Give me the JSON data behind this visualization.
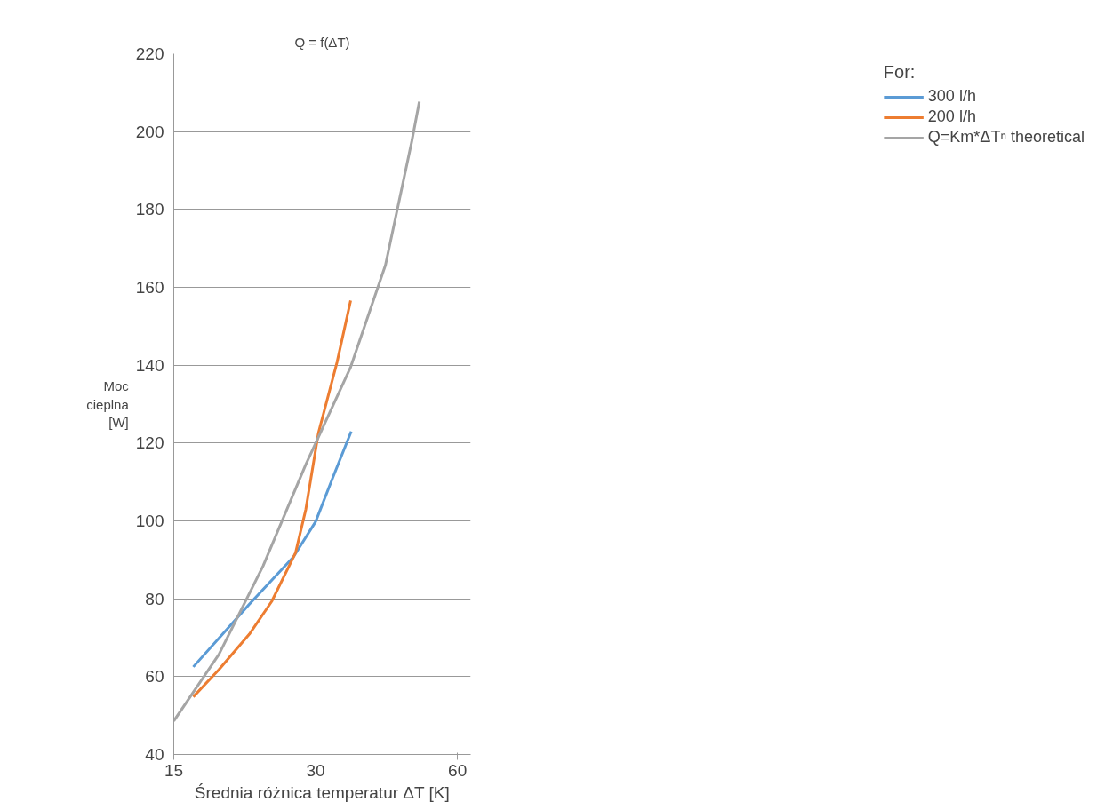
{
  "chart_data": {
    "type": "line",
    "title": "Q = f(ΔT)",
    "xlabel": "Średnia różnica temperatur ΔT [K]",
    "ylabel": "Moc cieplna [W]",
    "legend_title": "For:",
    "log": "x",
    "xlim": [
      15,
      64
    ],
    "xticks": [
      15,
      30,
      60
    ],
    "ylim": [
      40,
      220
    ],
    "yticks": [
      40,
      60,
      80,
      100,
      120,
      140,
      160,
      180,
      200,
      220
    ],
    "grid": "y",
    "legend": "right",
    "series": [
      {
        "name": "300 l/h",
        "color": "#5b9bd5",
        "x": [
          16.5,
          21.7,
          26.9,
          30,
          32.6,
          35.7
        ],
        "values": [
          62.5,
          78.6,
          90.7,
          99.8,
          111,
          123
        ]
      },
      {
        "name": "200 l/h",
        "color": "#ed7d31",
        "x": [
          16.5,
          18.7,
          21.7,
          24.2,
          27.2,
          28.6,
          30.4,
          33.3,
          35.6
        ],
        "values": [
          54.8,
          61.8,
          70.9,
          79.3,
          91.8,
          103,
          122.5,
          140.7,
          156.6
        ]
      },
      {
        "name": "Q=Km*ΔTⁿ theoretical",
        "color": "#a5a5a5",
        "x": [
          15,
          18.7,
          23.2,
          28.6,
          35.6,
          42.2,
          48,
          49.8
        ],
        "values": [
          48.6,
          65.7,
          88.4,
          114.5,
          139.5,
          165.7,
          197.5,
          207.7
        ]
      }
    ]
  }
}
